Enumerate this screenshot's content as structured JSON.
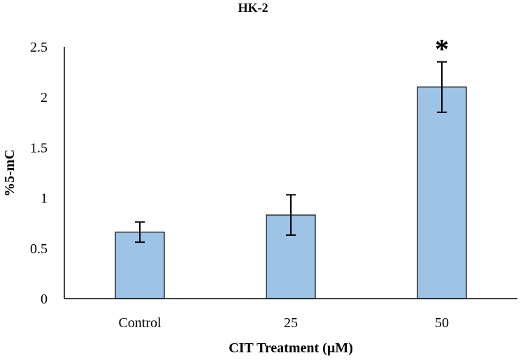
{
  "chart_data": {
    "type": "bar",
    "title": "HK-2",
    "xlabel": "CIT Treatment (µM)",
    "ylabel": "%5-mC",
    "categories": [
      "Control",
      "25",
      "50"
    ],
    "values": [
      0.66,
      0.83,
      2.1
    ],
    "error_bars": [
      0.1,
      0.2,
      0.25
    ],
    "annotations": [
      "",
      "",
      "*"
    ],
    "ylim": [
      0,
      2.5
    ],
    "yticks": [
      0,
      0.5,
      1,
      1.5,
      2,
      2.5
    ],
    "ytick_labels": [
      "0",
      "0.5",
      "1",
      "1.5",
      "2",
      "2.5"
    ],
    "grid": false,
    "bar_color": "#9dc3e6",
    "bar_edge_color": "#000000"
  }
}
